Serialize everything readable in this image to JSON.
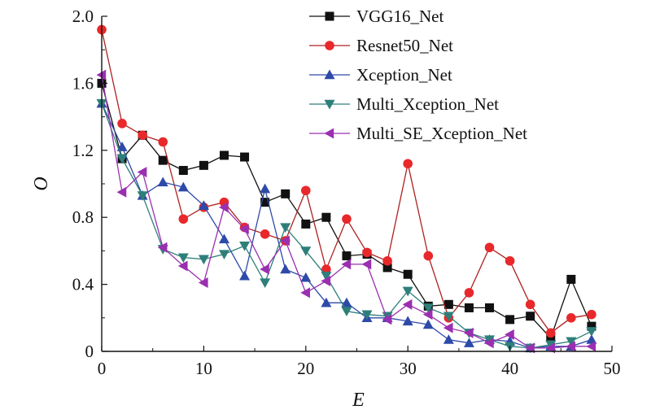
{
  "chart_data": {
    "type": "line",
    "xlabel": "E",
    "ylabel": "O",
    "xlim": [
      0,
      50
    ],
    "ylim": [
      0,
      2.0
    ],
    "x_ticks": [
      0,
      10,
      20,
      30,
      40,
      50
    ],
    "x_tick_labels": [
      "0",
      "10",
      "20",
      "30",
      "40",
      "50"
    ],
    "y_ticks": [
      0,
      0.4,
      0.8,
      1.2,
      1.6,
      2.0
    ],
    "y_tick_labels": [
      "0",
      "0.4",
      "0.8",
      "1.2",
      "1.6",
      "2.0"
    ],
    "grid": false,
    "legend_position": "top-right",
    "x": [
      0,
      2,
      4,
      6,
      8,
      10,
      12,
      14,
      16,
      18,
      20,
      22,
      24,
      26,
      28,
      30,
      32,
      34,
      36,
      38,
      40,
      42,
      44,
      46,
      48
    ],
    "series": [
      {
        "name": "VGG16_Net",
        "color": "#111111",
        "marker": "square",
        "values": [
          1.6,
          1.15,
          1.29,
          1.14,
          1.08,
          1.11,
          1.17,
          1.16,
          0.89,
          0.94,
          0.76,
          0.8,
          0.57,
          0.58,
          0.5,
          0.46,
          0.27,
          0.28,
          0.26,
          0.26,
          0.19,
          0.21,
          0.08,
          0.43,
          0.15
        ]
      },
      {
        "name": "Resnet50_Net",
        "color": "#e8282b",
        "line_color": "#b02020",
        "marker": "circle",
        "values": [
          1.92,
          1.36,
          1.29,
          1.25,
          0.79,
          0.86,
          0.89,
          0.74,
          0.7,
          0.66,
          0.96,
          0.49,
          0.79,
          0.59,
          0.54,
          1.12,
          0.57,
          0.2,
          0.35,
          0.62,
          0.54,
          0.28,
          0.11,
          0.2,
          0.22
        ]
      },
      {
        "name": "Xception_Net",
        "color": "#2e4aa8",
        "marker": "triangle-up",
        "values": [
          1.48,
          1.22,
          0.93,
          1.01,
          0.98,
          0.87,
          0.67,
          0.45,
          0.97,
          0.49,
          0.44,
          0.29,
          0.29,
          0.2,
          0.2,
          0.18,
          0.16,
          0.07,
          0.05,
          0.07,
          0.06,
          0.02,
          0.03,
          0.03,
          0.07
        ]
      },
      {
        "name": "Multi_Xception_Net",
        "color": "#2e7f7a",
        "marker": "triangle-down",
        "values": [
          1.48,
          1.15,
          0.93,
          0.61,
          0.56,
          0.55,
          0.58,
          0.63,
          0.41,
          0.74,
          0.6,
          0.45,
          0.24,
          0.22,
          0.21,
          0.36,
          0.26,
          0.21,
          0.11,
          0.07,
          0.03,
          0.02,
          0.04,
          0.06,
          0.12
        ]
      },
      {
        "name": "Multi_SE_Xception_Net",
        "color": "#9a2fb0",
        "marker": "triangle-left",
        "values": [
          1.65,
          0.95,
          1.07,
          0.62,
          0.51,
          0.41,
          0.86,
          0.73,
          0.49,
          0.66,
          0.35,
          0.42,
          0.52,
          0.52,
          0.19,
          0.28,
          0.22,
          0.14,
          0.11,
          0.05,
          0.1,
          0.02,
          0.02,
          0.03,
          0.03
        ]
      }
    ]
  }
}
